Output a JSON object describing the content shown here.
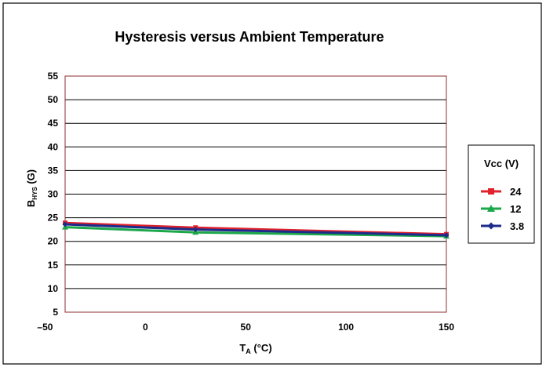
{
  "chart_data": {
    "type": "line",
    "title": "Hysteresis versus Ambient Temperature",
    "xlabel": {
      "main": "T",
      "sub": "A",
      "rest": " (°C)"
    },
    "ylabel": {
      "main": "B",
      "sub": "HYS",
      "rest": " (G)"
    },
    "xlim": [
      -40,
      150
    ],
    "ylim": [
      5,
      55
    ],
    "x_ticks": [
      -50,
      0,
      50,
      100,
      150
    ],
    "x_tick_labels": [
      "–50",
      "0",
      "50",
      "100",
      "150"
    ],
    "y_ticks": [
      5,
      10,
      15,
      20,
      25,
      30,
      35,
      40,
      45,
      50,
      55
    ],
    "y_tick_labels": [
      "5",
      "10",
      "15",
      "20",
      "25",
      "30",
      "35",
      "40",
      "45",
      "50",
      "55"
    ],
    "grid": true,
    "legend": {
      "title": "Vcc (V)",
      "placement": "right"
    },
    "series": [
      {
        "name": "24",
        "color": "#e0222c",
        "marker": "square",
        "x": [
          -40,
          25,
          150
        ],
        "y": [
          23.9,
          22.9,
          21.5
        ]
      },
      {
        "name": "12",
        "color": "#1ca84a",
        "marker": "triangle",
        "x": [
          -40,
          25,
          150
        ],
        "y": [
          23.0,
          21.9,
          21.1
        ]
      },
      {
        "name": "3.8",
        "color": "#1d2c8a",
        "marker": "diamond",
        "x": [
          -40,
          25,
          150
        ],
        "y": [
          23.6,
          22.5,
          21.3
        ]
      }
    ]
  }
}
